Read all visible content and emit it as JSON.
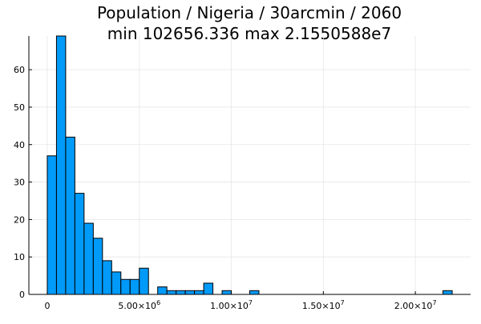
{
  "chart_data": {
    "type": "bar",
    "title": "Population / Nigeria / 30arcmin / 2060",
    "subtitle": "min 102656.336  max 2.1550588e7",
    "xlabel": "",
    "ylabel": "",
    "bin_width": 500000,
    "bin_edges": [
      0,
      500000,
      1000000,
      1500000,
      2000000,
      2500000,
      3000000,
      3500000,
      4000000,
      4500000,
      5000000,
      5500000,
      6000000,
      6500000,
      7000000,
      7500000,
      8000000,
      8500000,
      9000000,
      9500000,
      10000000,
      10500000,
      11000000,
      11500000,
      12000000,
      12500000,
      13000000,
      13500000,
      14000000,
      14500000,
      15000000,
      15500000,
      16000000,
      16500000,
      17000000,
      17500000,
      18000000,
      18500000,
      19000000,
      19500000,
      20000000,
      20500000,
      21000000,
      21500000,
      22000000
    ],
    "values": [
      37,
      69,
      42,
      27,
      19,
      15,
      9,
      6,
      4,
      4,
      7,
      0,
      2,
      1,
      1,
      1,
      1,
      3,
      0,
      1,
      0,
      0,
      1,
      0,
      0,
      0,
      0,
      0,
      0,
      0,
      0,
      0,
      0,
      0,
      0,
      0,
      0,
      0,
      0,
      0,
      0,
      0,
      0,
      1
    ],
    "xlim": [
      -1000000,
      23000000
    ],
    "ylim": [
      0,
      69
    ],
    "x_ticks": [
      {
        "value": 0,
        "label": "0",
        "mantissa": "",
        "exponent": ""
      },
      {
        "value": 5000000,
        "label": "",
        "mantissa": "5.00×10",
        "exponent": "6"
      },
      {
        "value": 10000000,
        "label": "",
        "mantissa": "1.00×10",
        "exponent": "7"
      },
      {
        "value": 15000000,
        "label": "",
        "mantissa": "1.50×10",
        "exponent": "7"
      },
      {
        "value": 20000000,
        "label": "",
        "mantissa": "2.00×10",
        "exponent": "7"
      }
    ],
    "y_ticks": [
      0,
      10,
      20,
      30,
      40,
      50,
      60
    ],
    "y_tick_labels": [
      "0",
      "10",
      "20",
      "30",
      "40",
      "50",
      "60"
    ],
    "grid": true,
    "legend": "none",
    "colors": {
      "bar_fill": "#009af9",
      "bar_stroke": "#000000",
      "grid": "#e6e6e6",
      "axis": "#000000"
    }
  }
}
